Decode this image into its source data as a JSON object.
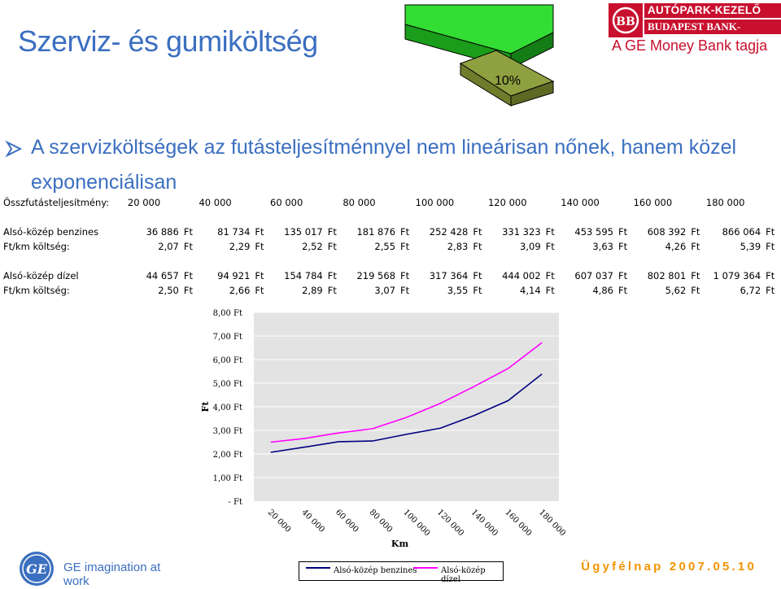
{
  "title": "Szerviz- és gumiköltség",
  "pie_label": "10%",
  "logo": {
    "line1": "AUTÓPARK-KEZELŐ",
    "line2": "BUDAPEST BANK-CSOPORT",
    "tagline": "A GE Money Bank tagja"
  },
  "bullet_text": "A szervizköltségek az futásteljesítménnyel nem lineárisan nőnek, hanem közel exponenciálisan",
  "table": {
    "header_label": "Összfutásteljesítmény:",
    "km": [
      "20 000",
      "40 000",
      "60 000",
      "80 000",
      "100 000",
      "120 000",
      "140 000",
      "160 000",
      "180 000"
    ],
    "currency": "Ft",
    "groups": [
      {
        "cost_label": "Alsó-közép benzines",
        "costs": [
          "36 886",
          "81 734",
          "135 017",
          "181 876",
          "252 428",
          "331 323",
          "453 595",
          "608 392",
          "866 064"
        ],
        "perkm_label": "Ft/km költség:",
        "perkm": [
          "2,07",
          "2,29",
          "2,52",
          "2,55",
          "2,83",
          "3,09",
          "3,63",
          "4,26",
          "5,39"
        ]
      },
      {
        "cost_label": "Alsó-közép dízel",
        "costs": [
          "44 657",
          "94 921",
          "154 784",
          "219 568",
          "317 364",
          "444 002",
          "607 037",
          "802 801",
          "1 079 364"
        ],
        "perkm_label": "Ft/km költség:",
        "perkm": [
          "2,50",
          "2,66",
          "2,89",
          "3,07",
          "3,55",
          "4,14",
          "4,86",
          "5,62",
          "6,72"
        ]
      }
    ]
  },
  "chart_data": {
    "type": "line",
    "categories": [
      "20 000",
      "40 000",
      "60 000",
      "80 000",
      "100 000",
      "120 000",
      "140 000",
      "160 000",
      "180 000"
    ],
    "series": [
      {
        "name": "Alsó-közép benzines",
        "color": "#000080",
        "values": [
          2.07,
          2.29,
          2.52,
          2.55,
          2.83,
          3.09,
          3.63,
          4.26,
          5.39
        ]
      },
      {
        "name": "Alsó-közép dízel",
        "color": "#ff00ff",
        "values": [
          2.5,
          2.66,
          2.89,
          3.07,
          3.55,
          4.14,
          4.86,
          5.62,
          6.72
        ]
      }
    ],
    "yticks": [
      "- Ft",
      "1,00 Ft",
      "2,00 Ft",
      "3,00 Ft",
      "4,00 Ft",
      "5,00 Ft",
      "6,00 Ft",
      "7,00 Ft",
      "8,00 Ft"
    ],
    "ylim": [
      0,
      8
    ],
    "xlabel": "Km",
    "ylabel": "Ft",
    "grid": true,
    "legend_position": "bottom"
  },
  "footer": {
    "ge_text": "GE imagination at work",
    "date_text": "Ügyfélnap 2007.05.10"
  },
  "colors": {
    "title_blue": "#3b6fc0",
    "logo_red": "#c8102e",
    "accent_orange": "#f29400",
    "pie_green": "#33cc33"
  }
}
